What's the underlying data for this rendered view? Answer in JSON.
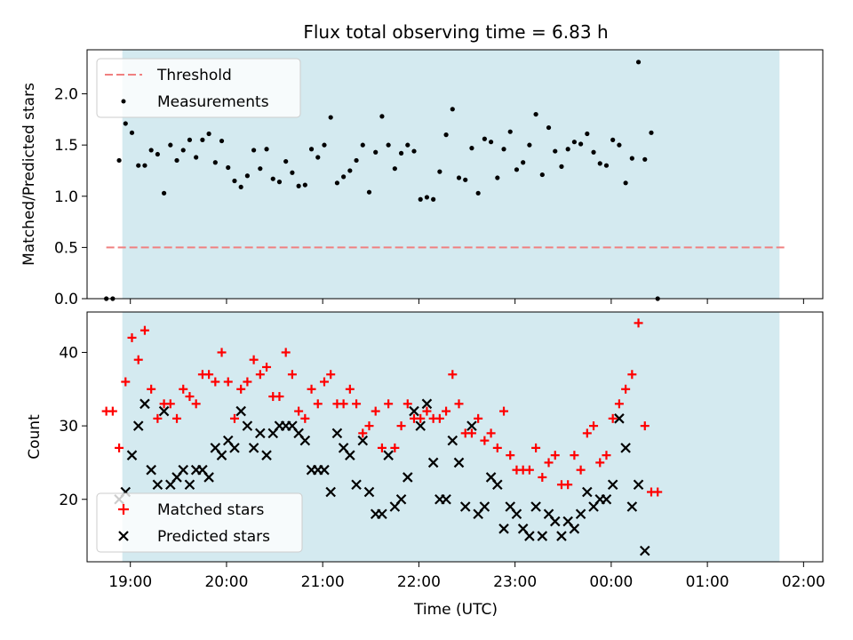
{
  "title": "Flux total observing time = 6.83 h",
  "xlabel": "Time (UTC)",
  "colors": {
    "span": "#d4eaf0",
    "threshold": "#f08080",
    "matched": "#ff0000",
    "predicted": "#000000",
    "measurement": "#000000"
  },
  "chart_data": [
    {
      "type": "scatter",
      "panel": "top",
      "ylabel": "Matched/Predicted stars",
      "xlim": [
        "18:33",
        "02:12"
      ],
      "ylim": [
        0,
        2.43
      ],
      "y_ticks": [
        0.0,
        0.5,
        1.0,
        1.5,
        2.0
      ],
      "shaded_span": [
        "18:55",
        "01:45"
      ],
      "legend": {
        "placement": "upper-left",
        "entries": [
          "Threshold",
          "Measurements"
        ]
      },
      "threshold": {
        "name": "Threshold",
        "y": 0.5,
        "x_range": [
          "18:45",
          "01:50"
        ],
        "style": "dashed"
      },
      "series": [
        {
          "name": "Measurements",
          "marker": "dot",
          "points": [
            [
              "18:45",
              0.0
            ],
            [
              "18:49",
              0.0
            ],
            [
              "18:53",
              1.35
            ],
            [
              "18:57",
              1.71
            ],
            [
              "19:01",
              1.62
            ],
            [
              "19:05",
              1.3
            ],
            [
              "19:09",
              1.3
            ],
            [
              "19:13",
              1.45
            ],
            [
              "19:17",
              1.41
            ],
            [
              "19:21",
              1.03
            ],
            [
              "19:25",
              1.5
            ],
            [
              "19:29",
              1.35
            ],
            [
              "19:33",
              1.45
            ],
            [
              "19:37",
              1.55
            ],
            [
              "19:41",
              1.38
            ],
            [
              "19:45",
              1.55
            ],
            [
              "19:49",
              1.61
            ],
            [
              "19:53",
              1.33
            ],
            [
              "19:57",
              1.54
            ],
            [
              "20:01",
              1.28
            ],
            [
              "20:05",
              1.15
            ],
            [
              "20:09",
              1.09
            ],
            [
              "20:13",
              1.2
            ],
            [
              "20:17",
              1.45
            ],
            [
              "20:21",
              1.27
            ],
            [
              "20:25",
              1.46
            ],
            [
              "20:29",
              1.17
            ],
            [
              "20:33",
              1.14
            ],
            [
              "20:37",
              1.34
            ],
            [
              "20:41",
              1.23
            ],
            [
              "20:45",
              1.1
            ],
            [
              "20:49",
              1.11
            ],
            [
              "20:53",
              1.46
            ],
            [
              "20:57",
              1.38
            ],
            [
              "21:01",
              1.5
            ],
            [
              "21:05",
              1.77
            ],
            [
              "21:09",
              1.13
            ],
            [
              "21:13",
              1.19
            ],
            [
              "21:17",
              1.25
            ],
            [
              "21:21",
              1.35
            ],
            [
              "21:25",
              1.5
            ],
            [
              "21:29",
              1.04
            ],
            [
              "21:33",
              1.43
            ],
            [
              "21:37",
              1.78
            ],
            [
              "21:41",
              1.5
            ],
            [
              "21:45",
              1.27
            ],
            [
              "21:49",
              1.42
            ],
            [
              "21:53",
              1.5
            ],
            [
              "21:57",
              1.44
            ],
            [
              "22:01",
              0.97
            ],
            [
              "22:05",
              0.99
            ],
            [
              "22:09",
              0.97
            ],
            [
              "22:13",
              1.24
            ],
            [
              "22:17",
              1.6
            ],
            [
              "22:21",
              1.85
            ],
            [
              "22:25",
              1.18
            ],
            [
              "22:29",
              1.16
            ],
            [
              "22:33",
              1.47
            ],
            [
              "22:37",
              1.03
            ],
            [
              "22:41",
              1.56
            ],
            [
              "22:45",
              1.53
            ],
            [
              "22:49",
              1.18
            ],
            [
              "22:53",
              1.46
            ],
            [
              "22:57",
              1.63
            ],
            [
              "23:01",
              1.26
            ],
            [
              "23:05",
              1.33
            ],
            [
              "23:09",
              1.5
            ],
            [
              "23:13",
              1.8
            ],
            [
              "23:17",
              1.21
            ],
            [
              "23:21",
              1.67
            ],
            [
              "23:25",
              1.44
            ],
            [
              "23:29",
              1.29
            ],
            [
              "23:33",
              1.46
            ],
            [
              "23:37",
              1.53
            ],
            [
              "23:41",
              1.51
            ],
            [
              "23:45",
              1.61
            ],
            [
              "23:49",
              1.43
            ],
            [
              "23:53",
              1.32
            ],
            [
              "23:57",
              1.3
            ],
            [
              "00:01",
              1.55
            ],
            [
              "00:05",
              1.5
            ],
            [
              "00:09",
              1.13
            ],
            [
              "00:13",
              1.37
            ],
            [
              "00:17",
              2.31
            ],
            [
              "00:21",
              1.36
            ],
            [
              "00:25",
              1.62
            ],
            [
              "00:29",
              0.0
            ]
          ]
        }
      ]
    },
    {
      "type": "scatter",
      "panel": "bottom",
      "ylabel": "Count",
      "xlabel": "Time (UTC)",
      "xlim": [
        "18:33",
        "02:12"
      ],
      "ylim": [
        11.5,
        45.5
      ],
      "x_ticks": [
        "19:00",
        "20:00",
        "21:00",
        "22:00",
        "23:00",
        "00:00",
        "01:00",
        "02:00"
      ],
      "y_ticks": [
        20,
        30,
        40
      ],
      "shaded_span": [
        "18:55",
        "01:45"
      ],
      "legend": {
        "placement": "lower-left",
        "entries": [
          "Matched stars",
          "Predicted stars"
        ]
      },
      "series": [
        {
          "name": "Matched stars",
          "marker": "plus",
          "color": "#ff0000",
          "points": [
            [
              "18:45",
              32
            ],
            [
              "18:49",
              32
            ],
            [
              "18:53",
              27
            ],
            [
              "18:57",
              36
            ],
            [
              "19:01",
              42
            ],
            [
              "19:05",
              39
            ],
            [
              "19:09",
              43
            ],
            [
              "19:13",
              35
            ],
            [
              "19:17",
              31
            ],
            [
              "19:21",
              33
            ],
            [
              "19:25",
              33
            ],
            [
              "19:29",
              31
            ],
            [
              "19:33",
              35
            ],
            [
              "19:37",
              34
            ],
            [
              "19:41",
              33
            ],
            [
              "19:45",
              37
            ],
            [
              "19:49",
              37
            ],
            [
              "19:53",
              36
            ],
            [
              "19:57",
              40
            ],
            [
              "20:01",
              36
            ],
            [
              "20:05",
              31
            ],
            [
              "20:09",
              35
            ],
            [
              "20:13",
              36
            ],
            [
              "20:17",
              39
            ],
            [
              "20:21",
              37
            ],
            [
              "20:25",
              38
            ],
            [
              "20:29",
              34
            ],
            [
              "20:33",
              34
            ],
            [
              "20:37",
              40
            ],
            [
              "20:41",
              37
            ],
            [
              "20:45",
              32
            ],
            [
              "20:49",
              31
            ],
            [
              "20:53",
              35
            ],
            [
              "20:57",
              33
            ],
            [
              "21:01",
              36
            ],
            [
              "21:05",
              37
            ],
            [
              "21:09",
              33
            ],
            [
              "21:13",
              33
            ],
            [
              "21:17",
              35
            ],
            [
              "21:21",
              33
            ],
            [
              "21:25",
              29
            ],
            [
              "21:29",
              30
            ],
            [
              "21:33",
              32
            ],
            [
              "21:37",
              27
            ],
            [
              "21:41",
              33
            ],
            [
              "21:45",
              27
            ],
            [
              "21:49",
              30
            ],
            [
              "21:53",
              33
            ],
            [
              "21:57",
              31
            ],
            [
              "22:01",
              31
            ],
            [
              "22:05",
              32
            ],
            [
              "22:09",
              31
            ],
            [
              "22:13",
              31
            ],
            [
              "22:17",
              32
            ],
            [
              "22:21",
              37
            ],
            [
              "22:25",
              33
            ],
            [
              "22:29",
              29
            ],
            [
              "22:33",
              29
            ],
            [
              "22:37",
              31
            ],
            [
              "22:41",
              28
            ],
            [
              "22:45",
              29
            ],
            [
              "22:49",
              27
            ],
            [
              "22:53",
              32
            ],
            [
              "22:57",
              26
            ],
            [
              "23:01",
              24
            ],
            [
              "23:05",
              24
            ],
            [
              "23:09",
              24
            ],
            [
              "23:13",
              27
            ],
            [
              "23:17",
              23
            ],
            [
              "23:21",
              25
            ],
            [
              "23:25",
              26
            ],
            [
              "23:29",
              22
            ],
            [
              "23:33",
              22
            ],
            [
              "23:37",
              26
            ],
            [
              "23:41",
              24
            ],
            [
              "23:45",
              29
            ],
            [
              "23:49",
              30
            ],
            [
              "23:53",
              25
            ],
            [
              "23:57",
              26
            ],
            [
              "00:01",
              31
            ],
            [
              "00:05",
              33
            ],
            [
              "00:09",
              35
            ],
            [
              "00:13",
              37
            ],
            [
              "00:17",
              44
            ],
            [
              "00:21",
              30
            ],
            [
              "00:25",
              21
            ],
            [
              "00:29",
              21
            ]
          ]
        },
        {
          "name": "Predicted stars",
          "marker": "x",
          "color": "#000000",
          "points": [
            [
              "18:53",
              20
            ],
            [
              "18:57",
              21
            ],
            [
              "19:01",
              26
            ],
            [
              "19:05",
              30
            ],
            [
              "19:09",
              33
            ],
            [
              "19:13",
              24
            ],
            [
              "19:17",
              22
            ],
            [
              "19:21",
              32
            ],
            [
              "19:25",
              22
            ],
            [
              "19:29",
              23
            ],
            [
              "19:33",
              24
            ],
            [
              "19:37",
              22
            ],
            [
              "19:41",
              24
            ],
            [
              "19:45",
              24
            ],
            [
              "19:49",
              23
            ],
            [
              "19:53",
              27
            ],
            [
              "19:57",
              26
            ],
            [
              "20:01",
              28
            ],
            [
              "20:05",
              27
            ],
            [
              "20:09",
              32
            ],
            [
              "20:13",
              30
            ],
            [
              "20:17",
              27
            ],
            [
              "20:21",
              29
            ],
            [
              "20:25",
              26
            ],
            [
              "20:29",
              29
            ],
            [
              "20:33",
              30
            ],
            [
              "20:37",
              30
            ],
            [
              "20:41",
              30
            ],
            [
              "20:45",
              29
            ],
            [
              "20:49",
              28
            ],
            [
              "20:53",
              24
            ],
            [
              "20:57",
              24
            ],
            [
              "21:01",
              24
            ],
            [
              "21:05",
              21
            ],
            [
              "21:09",
              29
            ],
            [
              "21:13",
              27
            ],
            [
              "21:17",
              26
            ],
            [
              "21:21",
              22
            ],
            [
              "21:25",
              28
            ],
            [
              "21:29",
              21
            ],
            [
              "21:33",
              18
            ],
            [
              "21:37",
              18
            ],
            [
              "21:41",
              26
            ],
            [
              "21:45",
              19
            ],
            [
              "21:49",
              20
            ],
            [
              "21:53",
              23
            ],
            [
              "21:57",
              32
            ],
            [
              "22:01",
              30
            ],
            [
              "22:05",
              33
            ],
            [
              "22:09",
              25
            ],
            [
              "22:13",
              20
            ],
            [
              "22:17",
              20
            ],
            [
              "22:21",
              28
            ],
            [
              "22:25",
              25
            ],
            [
              "22:29",
              19
            ],
            [
              "22:33",
              30
            ],
            [
              "22:37",
              18
            ],
            [
              "22:41",
              19
            ],
            [
              "22:45",
              23
            ],
            [
              "22:49",
              22
            ],
            [
              "22:53",
              16
            ],
            [
              "22:57",
              19
            ],
            [
              "23:01",
              18
            ],
            [
              "23:05",
              16
            ],
            [
              "23:09",
              15
            ],
            [
              "23:13",
              19
            ],
            [
              "23:17",
              15
            ],
            [
              "23:21",
              18
            ],
            [
              "23:25",
              17
            ],
            [
              "23:29",
              15
            ],
            [
              "23:33",
              17
            ],
            [
              "23:37",
              16
            ],
            [
              "23:41",
              18
            ],
            [
              "23:45",
              21
            ],
            [
              "23:49",
              19
            ],
            [
              "23:53",
              20
            ],
            [
              "23:57",
              20
            ],
            [
              "00:01",
              22
            ],
            [
              "00:05",
              31
            ],
            [
              "00:09",
              27
            ],
            [
              "00:13",
              19
            ],
            [
              "00:17",
              22
            ],
            [
              "00:21",
              13
            ]
          ]
        }
      ]
    }
  ]
}
